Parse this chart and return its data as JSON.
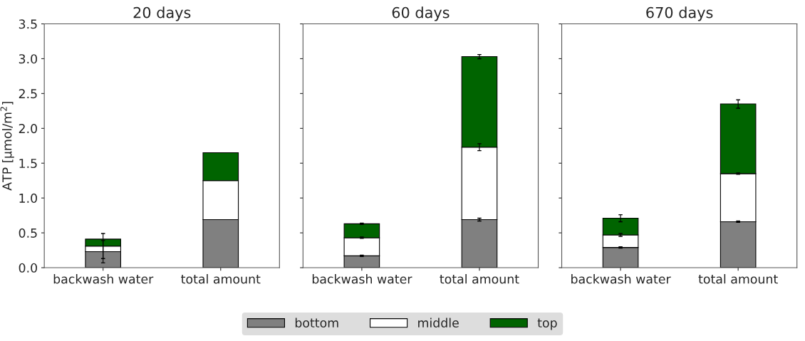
{
  "chart_data": [
    {
      "type": "bar",
      "title": "20 days",
      "ylabel": "ATP [µmol/m$^{2}$]",
      "categories": [
        "backwash water",
        "total amount"
      ],
      "stacked": true,
      "legend": "bottom",
      "ylim": [
        0,
        3.5
      ],
      "yticks": [
        {
          "value": 0,
          "label": "0.0"
        },
        0.5,
        {
          "value": 1,
          "label": "1.0"
        },
        1.5,
        {
          "value": 2,
          "label": "2.0"
        },
        2.5,
        {
          "value": 3,
          "label": "3.0"
        },
        3.5
      ],
      "series": [
        {
          "name": "bottom",
          "color": "#808080",
          "values": [
            0.23,
            0.69
          ],
          "errors": [
            0.16,
            null
          ]
        },
        {
          "name": "middle",
          "color": "#ffffff",
          "values": [
            0.08,
            0.56
          ],
          "errors": [
            0.18,
            null
          ]
        },
        {
          "name": "top",
          "color": "#006400",
          "values": [
            0.1,
            0.4
          ]
        }
      ]
    },
    {
      "type": "bar",
      "title": "60 days",
      "categories": [
        "backwash water",
        "total amount"
      ],
      "stacked": true,
      "tick_labels": "x",
      "ylim": [
        0,
        3.5
      ],
      "yticks": [
        {
          "value": 0,
          "label": null
        },
        {
          "value": 0.5,
          "label": null
        },
        {
          "value": 1,
          "label": null
        },
        {
          "value": 1.5,
          "label": null
        },
        {
          "value": 2,
          "label": null
        },
        {
          "value": 2.5,
          "label": null
        },
        {
          "value": 3,
          "label": null
        },
        {
          "value": 3.5,
          "label": null
        }
      ],
      "series": [
        {
          "color": "#808080",
          "values": [
            0.17,
            0.69
          ],
          "errors": [
            0.01,
            0.02
          ]
        },
        {
          "color": "#ffffff",
          "values": [
            0.26,
            1.04
          ],
          "errors": [
            0.01,
            0.05
          ]
        },
        {
          "color": "#006400",
          "values": [
            0.2,
            1.3
          ],
          "errors": [
            0.01,
            0.03
          ]
        }
      ]
    },
    {
      "type": "bar",
      "title": "670 days",
      "categories": [
        "backwash water",
        "total amount"
      ],
      "stacked": true,
      "tick_labels": "x",
      "ylim": [
        0,
        3.5
      ],
      "yticks": [
        {
          "value": 0,
          "label": null
        },
        {
          "value": 0.5,
          "label": null
        },
        {
          "value": 1,
          "label": null
        },
        {
          "value": 1.5,
          "label": null
        },
        {
          "value": 2,
          "label": null
        },
        {
          "value": 2.5,
          "label": null
        },
        {
          "value": 3,
          "label": null
        },
        {
          "value": 3.5,
          "label": null
        }
      ],
      "series": [
        {
          "color": "#808080",
          "values": [
            0.29,
            0.66
          ],
          "errors": [
            0.01,
            0.01
          ]
        },
        {
          "color": "#ffffff",
          "values": [
            0.18,
            0.69
          ],
          "errors": [
            0.02,
            0.01
          ]
        },
        {
          "color": "#006400",
          "values": [
            0.24,
            1.0
          ],
          "errors": [
            0.05,
            0.06
          ]
        }
      ]
    }
  ]
}
